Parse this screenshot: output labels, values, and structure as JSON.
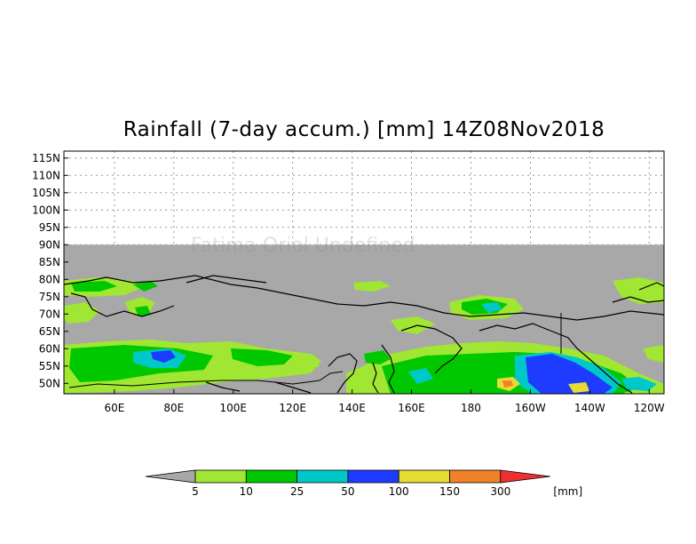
{
  "title": "Rainfall (7-day accum.) [mm] 14Z08Nov2018",
  "overlay_text": "Fatima Oriol Undefined",
  "map": {
    "lat_range": [
      47,
      117
    ],
    "lon_range": [
      43,
      245
    ],
    "data_top_lat": 90
  },
  "axes": {
    "y_ticks": [
      {
        "lat": 115,
        "label": "115N"
      },
      {
        "lat": 110,
        "label": "110N"
      },
      {
        "lat": 105,
        "label": "105N"
      },
      {
        "lat": 100,
        "label": "100N"
      },
      {
        "lat": 95,
        "label": "95N"
      },
      {
        "lat": 90,
        "label": "90N"
      },
      {
        "lat": 85,
        "label": "85N"
      },
      {
        "lat": 80,
        "label": "80N"
      },
      {
        "lat": 75,
        "label": "75N"
      },
      {
        "lat": 70,
        "label": "70N"
      },
      {
        "lat": 65,
        "label": "65N"
      },
      {
        "lat": 60,
        "label": "60N"
      },
      {
        "lat": 55,
        "label": "55N"
      },
      {
        "lat": 50,
        "label": "50N"
      }
    ],
    "x_ticks": [
      {
        "lon": 60,
        "label": "60E"
      },
      {
        "lon": 80,
        "label": "80E"
      },
      {
        "lon": 100,
        "label": "100E"
      },
      {
        "lon": 120,
        "label": "120E"
      },
      {
        "lon": 140,
        "label": "140E"
      },
      {
        "lon": 160,
        "label": "160E"
      },
      {
        "lon": 180,
        "label": "180"
      },
      {
        "lon": 200,
        "label": "160W"
      },
      {
        "lon": 220,
        "label": "140W"
      },
      {
        "lon": 240,
        "label": "120W"
      }
    ]
  },
  "legend": {
    "labels": [
      "5",
      "10",
      "25",
      "50",
      "100",
      "150",
      "300"
    ],
    "unit": "[mm]",
    "under_color": "#a8a8a8",
    "over_color": "#f03030",
    "colors": [
      "#a0e632",
      "#00c800",
      "#00c8c8",
      "#1e3cff",
      "#e6dc32",
      "#f08228"
    ]
  },
  "colors": {
    "undefined_gray": "#a8a8a8",
    "land_outline": "#000000"
  }
}
